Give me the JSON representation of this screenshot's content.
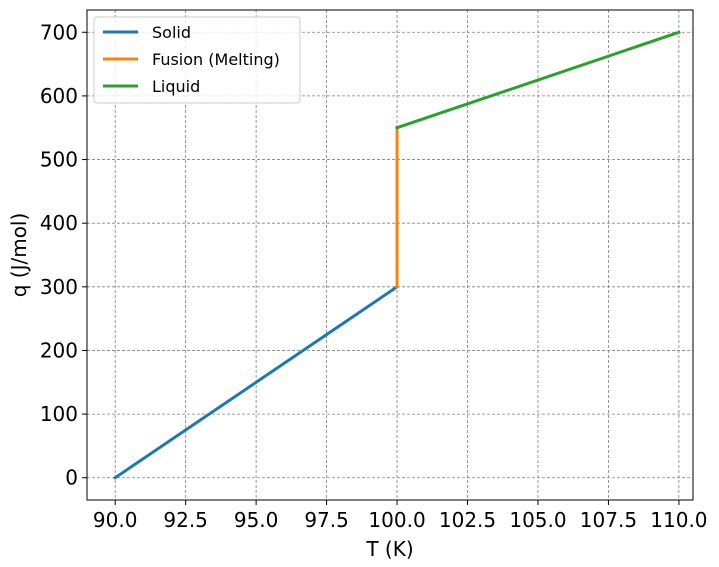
{
  "chart_data": {
    "type": "line",
    "title": "",
    "xlabel": "T (K)",
    "ylabel": "q (J/mol)",
    "xlim": [
      89.0,
      110.5
    ],
    "ylim": [
      -35,
      735
    ],
    "xticks": [
      90.0,
      92.5,
      95.0,
      97.5,
      100.0,
      102.5,
      105.0,
      107.5,
      110.0
    ],
    "xtick_labels": [
      "90.0",
      "92.5",
      "95.0",
      "97.5",
      "100.0",
      "102.5",
      "105.0",
      "107.5",
      "110.0"
    ],
    "yticks": [
      0,
      100,
      200,
      300,
      400,
      500,
      600,
      700
    ],
    "ytick_labels": [
      "0",
      "100",
      "200",
      "300",
      "400",
      "500",
      "600",
      "700"
    ],
    "grid": true,
    "legend_position": "top-left",
    "series": [
      {
        "name": "Solid",
        "color": "#1f77b4",
        "x": [
          90.0,
          100.0
        ],
        "y": [
          0,
          300
        ]
      },
      {
        "name": "Fusion (Melting)",
        "color": "#ff7f0e",
        "x": [
          100.0,
          100.0
        ],
        "y": [
          300,
          550
        ]
      },
      {
        "name": "Liquid",
        "color": "#2ca02c",
        "x": [
          100.0,
          110.0
        ],
        "y": [
          550,
          700
        ]
      }
    ]
  }
}
